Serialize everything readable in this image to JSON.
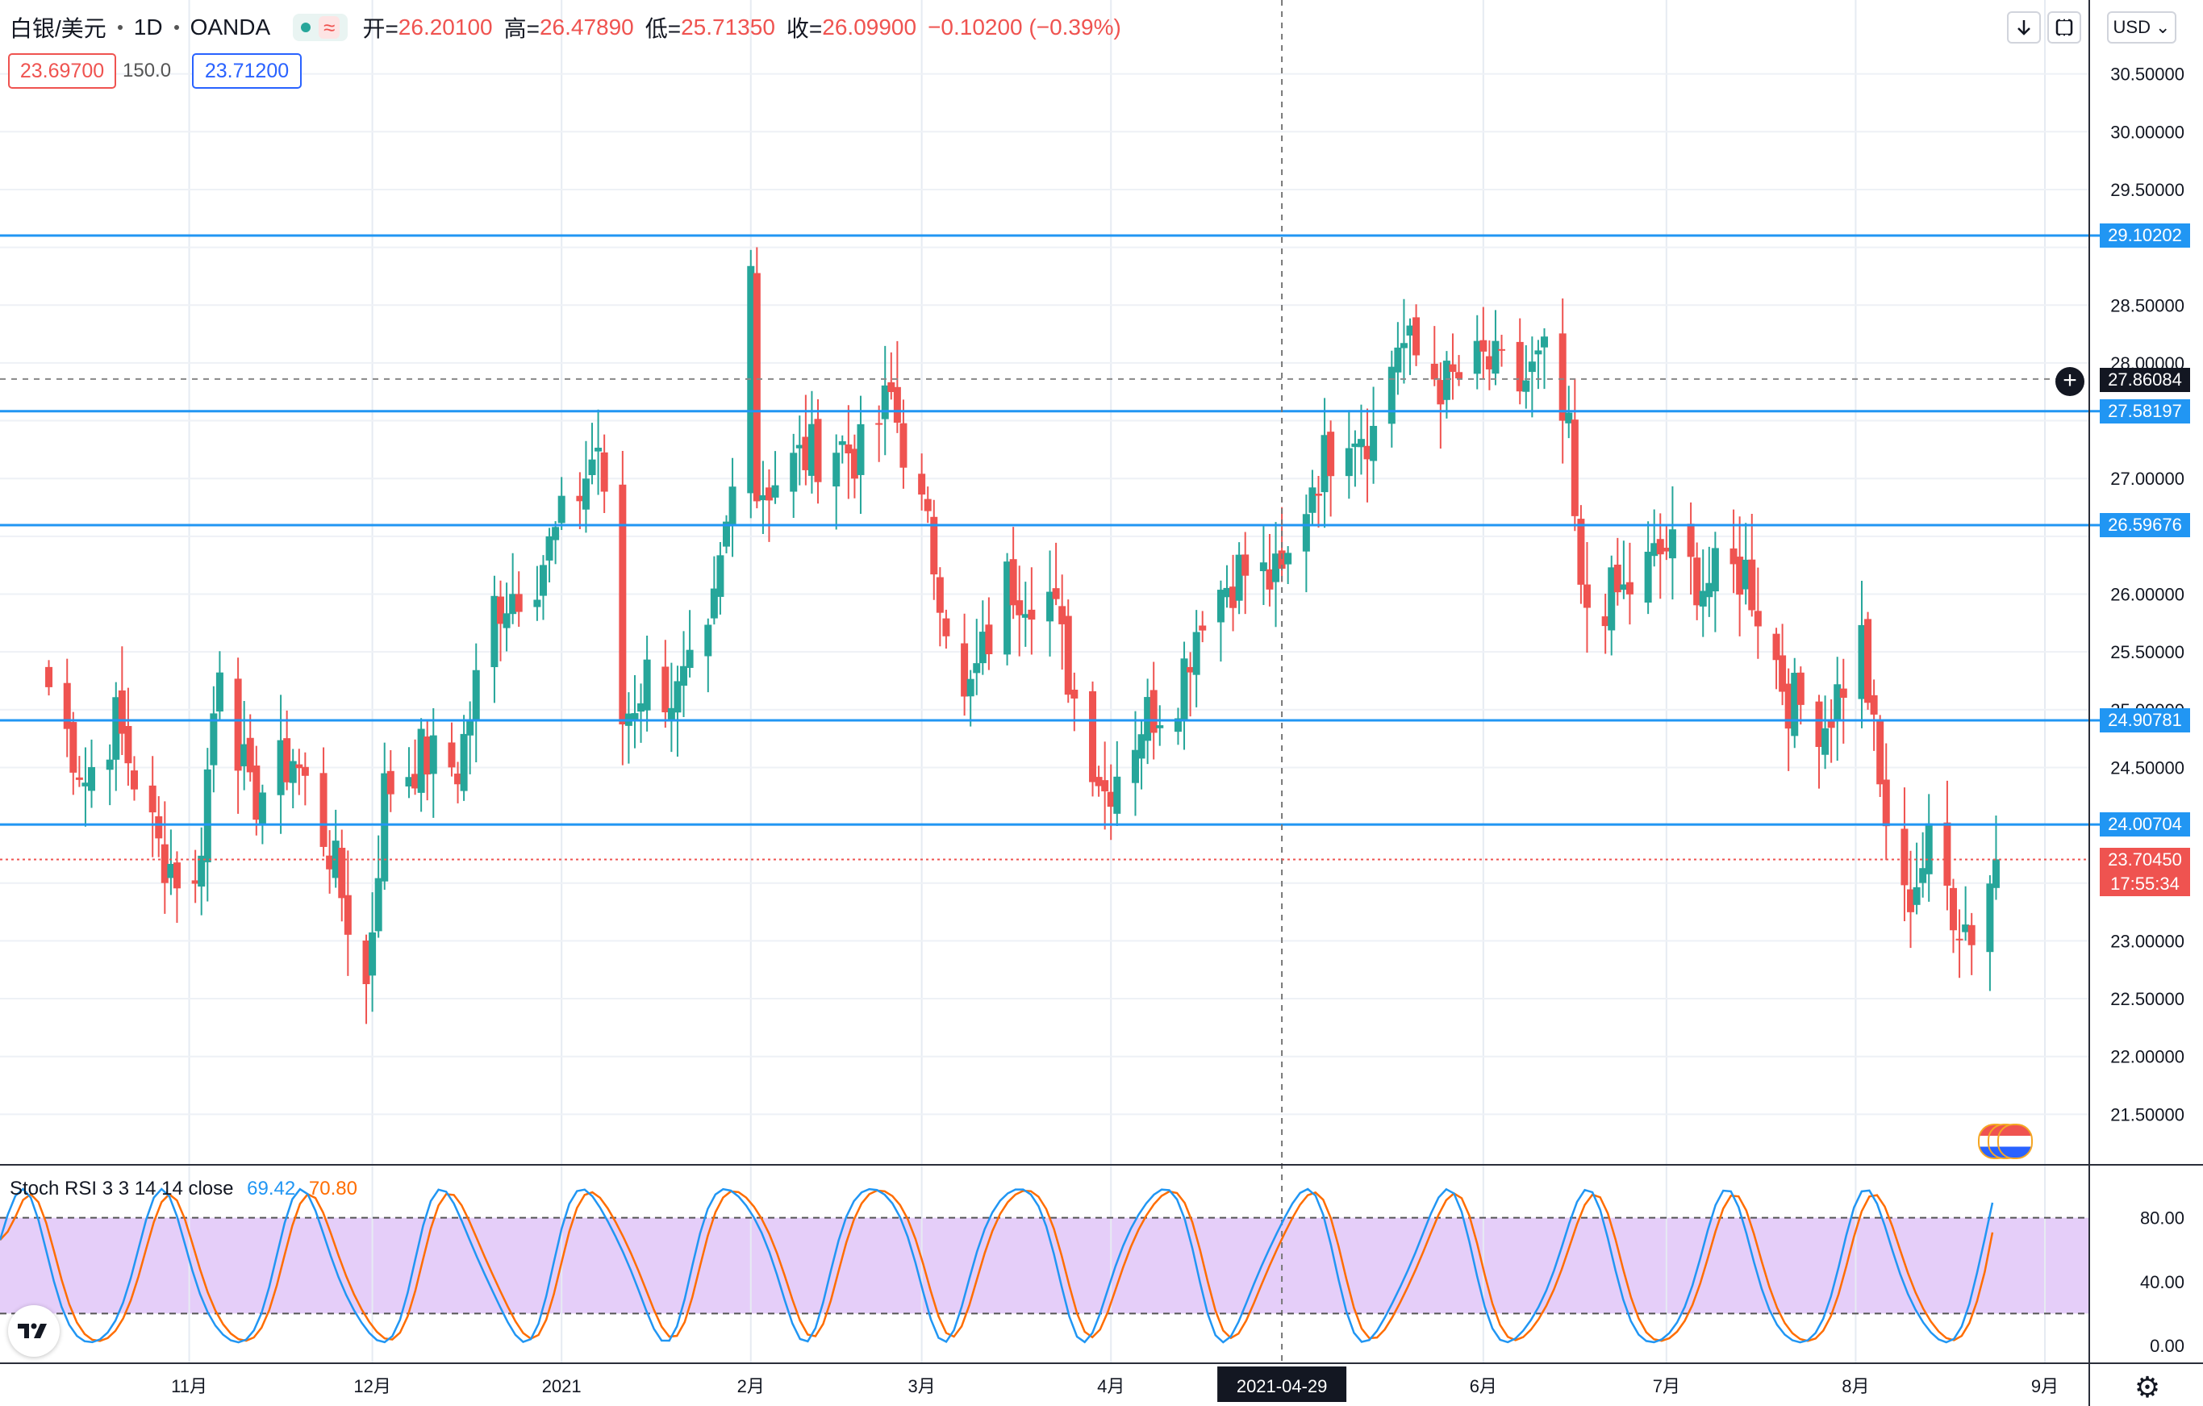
{
  "header": {
    "symbol": "白银/美元",
    "interval": "1D",
    "exchange": "OANDA",
    "wave_icon": "≈",
    "open_label": "开=",
    "open": "26.20100",
    "high_label": "高=",
    "high": "26.47890",
    "low_label": "低=",
    "low": "25.71350",
    "close_label": "收=",
    "close": "26.09900",
    "change": "−0.10200 (−0.39%)"
  },
  "trade": {
    "sell": "23.69700",
    "spread": "150.0",
    "buy": "23.71200"
  },
  "toolbar": {
    "currency": "USD"
  },
  "crosshair": {
    "date": "2021-04-29",
    "price": "27.86084"
  },
  "levels": [
    "29.10202",
    "27.58197",
    "26.59676",
    "24.90781",
    "24.00704"
  ],
  "last_price": {
    "value": "23.70450",
    "countdown": "17:55:34"
  },
  "indicator": {
    "name": "Stoch RSI 3 3 14 14 close",
    "k": "69.42",
    "d": "70.80"
  },
  "colors": {
    "up": "#26a69a",
    "down": "#ef5350",
    "level": "#2196f3",
    "k": "#2196f3",
    "d": "#ff6d00",
    "band": "#e1c6f8"
  },
  "icons": {
    "logo": "tradingview-logo",
    "settings": "gear-icon",
    "download": "arrow-down-icon",
    "fullscreen": "fullscreen-icon",
    "crosshair_add": "plus-circle-icon",
    "events": "us-flag-events-icon"
  },
  "chart_data": {
    "type": "candlestick",
    "title": "白银/美元 · 1D · OANDA",
    "ylim": [
      21.25,
      31.0
    ],
    "y_ticks": [
      "30.50000",
      "30.00000",
      "29.50000",
      "28.50000",
      "28.00000",
      "27.00000",
      "26.00000",
      "25.50000",
      "25.00000",
      "24.50000",
      "23.00000",
      "22.50000",
      "22.00000",
      "21.50000"
    ],
    "x_labels": [
      "11月",
      "12月",
      "2021",
      "2月",
      "3月",
      "4月",
      "6月",
      "7月",
      "8月",
      "9月"
    ],
    "x_label_dates": [
      "2020-11-01",
      "2020-12-01",
      "2021-01-01",
      "2021-02-01",
      "2021-03-01",
      "2021-04-01",
      "2021-06-01",
      "2021-07-01",
      "2021-08-01",
      "2021-09-01"
    ],
    "horizontal_levels": [
      29.10202,
      27.58197,
      26.59676,
      24.90781,
      24.00704
    ],
    "series_anchors": [
      [
        "2020-10-09",
        25.2
      ],
      [
        "2020-10-15",
        24.4
      ],
      [
        "2020-10-20",
        24.9
      ],
      [
        "2020-10-27",
        23.8
      ],
      [
        "2020-11-02",
        23.4
      ],
      [
        "2020-11-06",
        25.5
      ],
      [
        "2020-11-11",
        24.2
      ],
      [
        "2020-11-18",
        24.6
      ],
      [
        "2020-11-24",
        23.8
      ],
      [
        "2020-11-30",
        22.6
      ],
      [
        "2020-12-03",
        24.3
      ],
      [
        "2020-12-09",
        24.6
      ],
      [
        "2020-12-15",
        24.5
      ],
      [
        "2020-12-21",
        25.9
      ],
      [
        "2020-12-28",
        26.2
      ],
      [
        "2021-01-04",
        26.9
      ],
      [
        "2021-01-07",
        27.3
      ],
      [
        "2021-01-11",
        24.9
      ],
      [
        "2021-01-15",
        25.3
      ],
      [
        "2021-01-20",
        25.1
      ],
      [
        "2021-01-25",
        25.5
      ],
      [
        "2021-01-29",
        26.9
      ],
      [
        "2021-02-01",
        29.1
      ],
      [
        "2021-02-02",
        26.9
      ],
      [
        "2021-02-05",
        27.0
      ],
      [
        "2021-02-10",
        27.2
      ],
      [
        "2021-02-15",
        27.3
      ],
      [
        "2021-02-19",
        27.2
      ],
      [
        "2021-02-24",
        27.7
      ],
      [
        "2021-03-01",
        26.7
      ],
      [
        "2021-03-04",
        26.1
      ],
      [
        "2021-03-08",
        25.0
      ],
      [
        "2021-03-15",
        26.1
      ],
      [
        "2021-03-22",
        26.0
      ],
      [
        "2021-03-26",
        25.1
      ],
      [
        "2021-03-31",
        24.3
      ],
      [
        "2021-04-06",
        24.9
      ],
      [
        "2021-04-12",
        25.2
      ],
      [
        "2021-04-16",
        25.9
      ],
      [
        "2021-04-22",
        26.2
      ],
      [
        "2021-04-29",
        26.1
      ],
      [
        "2021-05-04",
        27.0
      ],
      [
        "2021-05-10",
        27.5
      ],
      [
        "2021-05-14",
        27.4
      ],
      [
        "2021-05-18",
        28.2
      ],
      [
        "2021-05-26",
        27.8
      ],
      [
        "2021-06-01",
        28.0
      ],
      [
        "2021-06-07",
        27.8
      ],
      [
        "2021-06-11",
        28.0
      ],
      [
        "2021-06-15",
        27.3
      ],
      [
        "2021-06-17",
        25.9
      ],
      [
        "2021-06-24",
        26.0
      ],
      [
        "2021-07-01",
        26.4
      ],
      [
        "2021-07-07",
        26.1
      ],
      [
        "2021-07-14",
        26.2
      ],
      [
        "2021-07-21",
        25.1
      ],
      [
        "2021-07-27",
        24.9
      ],
      [
        "2021-08-02",
        25.6
      ],
      [
        "2021-08-05",
        24.3
      ],
      [
        "2021-08-09",
        23.3
      ],
      [
        "2021-08-13",
        23.8
      ],
      [
        "2021-08-18",
        23.2
      ],
      [
        "2021-08-20",
        23.1
      ],
      [
        "2021-08-24",
        23.7
      ]
    ],
    "stoch_rsi": {
      "name": "Stoch RSI 3 3 14 14 close",
      "ylim": [
        0,
        100
      ],
      "y_ticks": [
        "80.00",
        "40.00",
        "0.00"
      ],
      "band": [
        20,
        80
      ],
      "k_last": 69.42,
      "d_last": 70.8
    }
  }
}
